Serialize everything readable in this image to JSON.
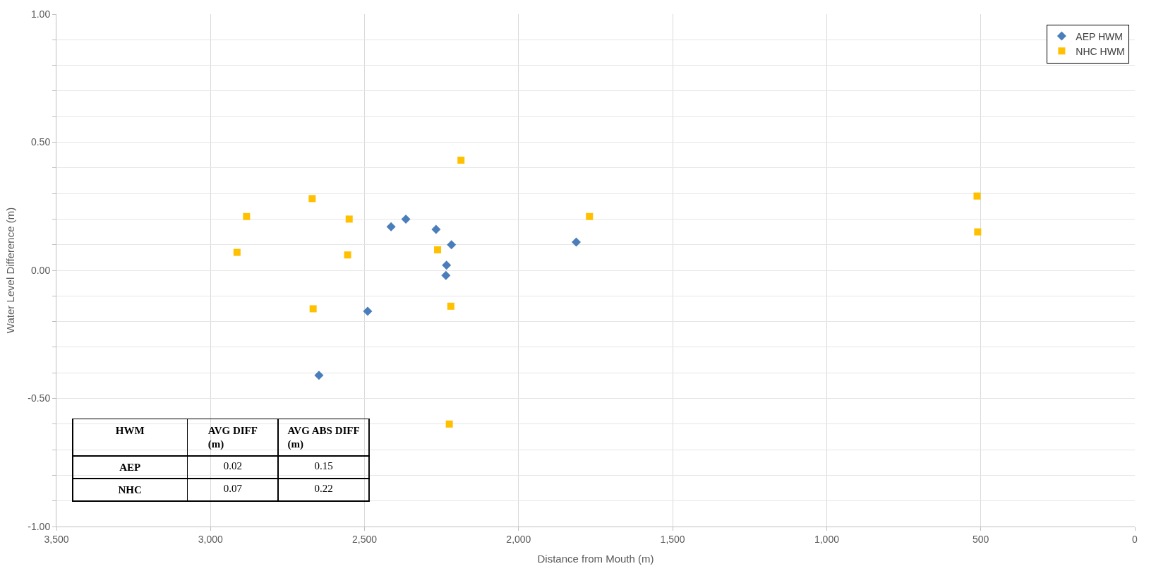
{
  "chart_data": {
    "type": "scatter",
    "xlabel": "Distance from Mouth (m)",
    "ylabel": "Water Level Difference (m)",
    "series": [
      {
        "name": "AEP HWM",
        "color": "#4a7ebb",
        "marker": "diamond",
        "x": [
          2648,
          2490,
          2414,
          2366,
          2268,
          2218,
          2234,
          2236,
          1813
        ],
        "values": [
          -0.41,
          -0.16,
          0.17,
          0.2,
          0.16,
          0.1,
          0.02,
          -0.02,
          0.11
        ]
      },
      {
        "name": "NHC HWM",
        "color": "#ffc000",
        "marker": "square",
        "x": [
          2914,
          2883,
          2670,
          2667,
          2550,
          2555,
          2263,
          2187,
          2220,
          2225,
          1770,
          512,
          510
        ],
        "values": [
          0.07,
          0.21,
          0.28,
          -0.15,
          0.2,
          0.06,
          0.08,
          0.43,
          -0.14,
          -0.6,
          0.21,
          0.29,
          0.15
        ]
      }
    ],
    "xlim": [
      3500,
      0
    ],
    "xticks": [
      {
        "value": 3500,
        "label": "3,500"
      },
      {
        "value": 3000,
        "label": "3,000"
      },
      {
        "value": 2500,
        "label": "2,500"
      },
      {
        "value": 2000,
        "label": "2,000"
      },
      {
        "value": 1500,
        "label": "1,500"
      },
      {
        "value": 1000,
        "label": "1,000"
      },
      500,
      0
    ],
    "ylim": [
      -1,
      1
    ],
    "yticks": [
      {
        "value": -1,
        "label": "-1.00"
      },
      {
        "value": -0.9,
        "label": null
      },
      {
        "value": -0.8,
        "label": null
      },
      {
        "value": -0.7,
        "label": null
      },
      {
        "value": -0.6,
        "label": null
      },
      {
        "value": -0.5,
        "label": "-0.50"
      },
      {
        "value": -0.4,
        "label": null
      },
      {
        "value": -0.3,
        "label": null
      },
      {
        "value": -0.2,
        "label": null
      },
      {
        "value": -0.1,
        "label": null
      },
      {
        "value": 0,
        "label": "0.00"
      },
      {
        "value": 0.1,
        "label": null
      },
      {
        "value": 0.2,
        "label": null
      },
      {
        "value": 0.3,
        "label": null
      },
      {
        "value": 0.4,
        "label": null
      },
      {
        "value": 0.5,
        "label": "0.50"
      },
      {
        "value": 0.6,
        "label": null
      },
      {
        "value": 0.7,
        "label": null
      },
      {
        "value": 0.8,
        "label": null
      },
      {
        "value": 0.9,
        "label": null
      },
      {
        "value": 1,
        "label": "1.00"
      }
    ],
    "grid": true,
    "legend": "top right",
    "annotations": [
      "HWM",
      "AVG DIFF (m)",
      "AVG ABS DIFF (m)",
      "AEP",
      "0.02",
      "0.15",
      "NHC",
      "0.07",
      "0.22"
    ]
  }
}
